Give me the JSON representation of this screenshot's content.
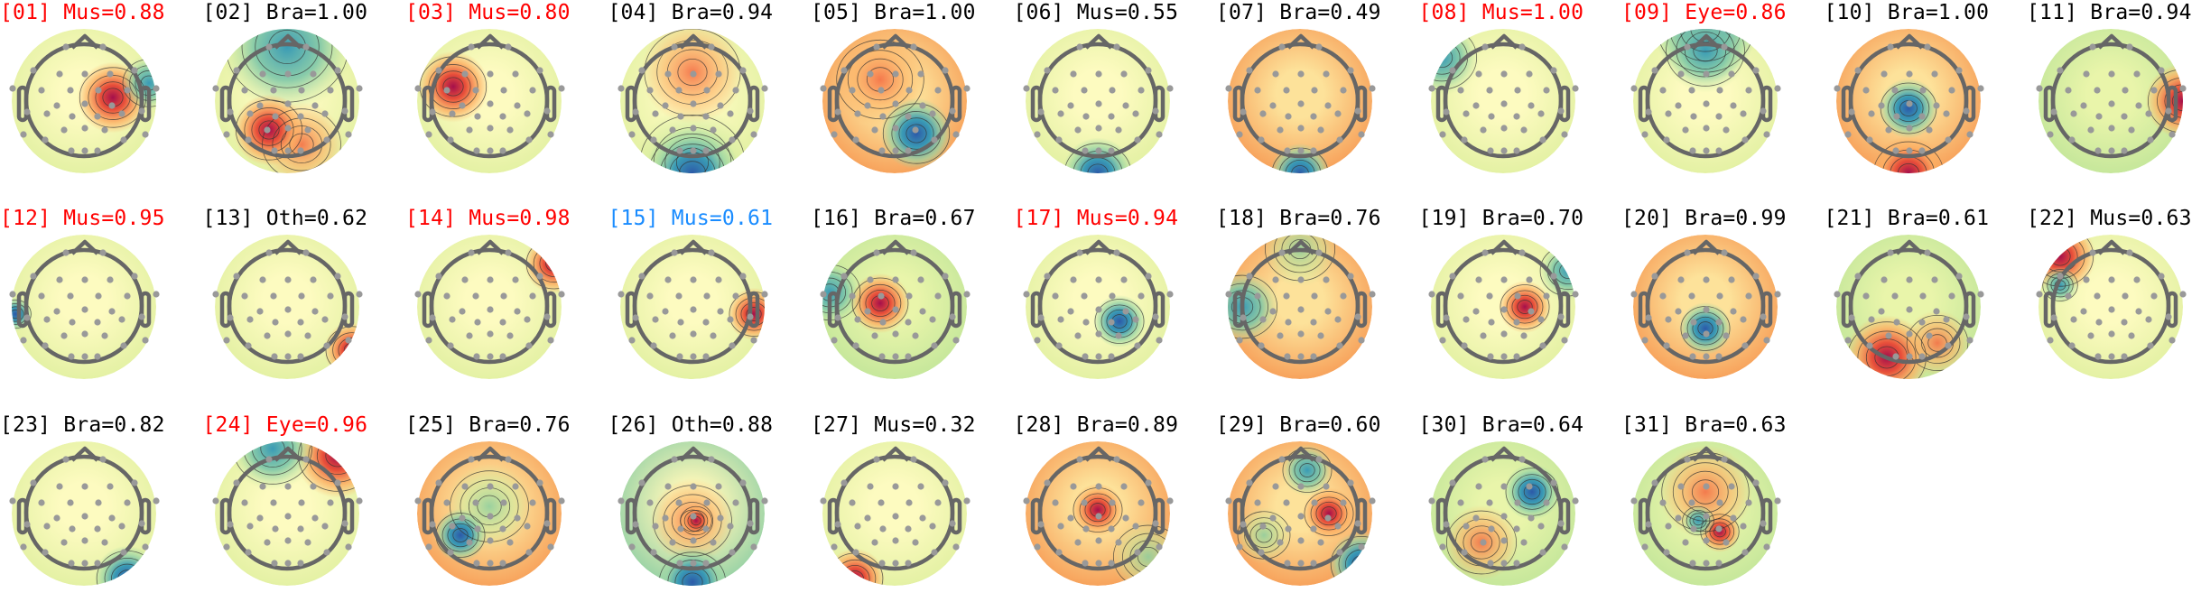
{
  "chart_data": {
    "type": "topomap-grid",
    "colormap": "Spectral_r",
    "label_colors": {
      "flagged": "#ff0000",
      "uncertain": "#1a8cff",
      "normal": "#000000"
    },
    "panels": [
      {
        "title": "[01] Mus=0.88",
        "label": "Mus",
        "score": 0.88,
        "color": "#ff0000"
      },
      {
        "title": "[02] Bra=1.00",
        "label": "Bra",
        "score": 1.0,
        "color": "#000000"
      },
      {
        "title": "[03] Mus=0.80",
        "label": "Mus",
        "score": 0.8,
        "color": "#ff0000"
      },
      {
        "title": "[04] Bra=0.94",
        "label": "Bra",
        "score": 0.94,
        "color": "#000000"
      },
      {
        "title": "[05] Bra=1.00",
        "label": "Bra",
        "score": 1.0,
        "color": "#000000"
      },
      {
        "title": "[06] Mus=0.55",
        "label": "Mus",
        "score": 0.55,
        "color": "#000000"
      },
      {
        "title": "[07] Bra=0.49",
        "label": "Bra",
        "score": 0.49,
        "color": "#000000"
      },
      {
        "title": "[08] Mus=1.00",
        "label": "Mus",
        "score": 1.0,
        "color": "#ff0000"
      },
      {
        "title": "[09] Eye=0.86",
        "label": "Eye",
        "score": 0.86,
        "color": "#ff0000"
      },
      {
        "title": "[10] Bra=1.00",
        "label": "Bra",
        "score": 1.0,
        "color": "#000000"
      },
      {
        "title": "[11] Bra=0.94",
        "label": "Bra",
        "score": 0.94,
        "color": "#000000"
      },
      {
        "title": "[12] Mus=0.95",
        "label": "Mus",
        "score": 0.95,
        "color": "#ff0000"
      },
      {
        "title": "[13] Oth=0.62",
        "label": "Oth",
        "score": 0.62,
        "color": "#000000"
      },
      {
        "title": "[14] Mus=0.98",
        "label": "Mus",
        "score": 0.98,
        "color": "#ff0000"
      },
      {
        "title": "[15] Mus=0.61",
        "label": "Mus",
        "score": 0.61,
        "color": "#1a8cff"
      },
      {
        "title": "[16] Bra=0.67",
        "label": "Bra",
        "score": 0.67,
        "color": "#000000"
      },
      {
        "title": "[17] Mus=0.94",
        "label": "Mus",
        "score": 0.94,
        "color": "#ff0000"
      },
      {
        "title": "[18] Bra=0.76",
        "label": "Bra",
        "score": 0.76,
        "color": "#000000"
      },
      {
        "title": "[19] Bra=0.70",
        "label": "Bra",
        "score": 0.7,
        "color": "#000000"
      },
      {
        "title": "[20] Bra=0.99",
        "label": "Bra",
        "score": 0.99,
        "color": "#000000"
      },
      {
        "title": "[21] Bra=0.61",
        "label": "Bra",
        "score": 0.61,
        "color": "#000000"
      },
      {
        "title": "[22] Mus=0.63",
        "label": "Mus",
        "score": 0.63,
        "color": "#000000"
      },
      {
        "title": "[23] Bra=0.82",
        "label": "Bra",
        "score": 0.82,
        "color": "#000000"
      },
      {
        "title": "[24] Eye=0.96",
        "label": "Eye",
        "score": 0.96,
        "color": "#ff0000"
      },
      {
        "title": "[25] Bra=0.76",
        "label": "Bra",
        "score": 0.76,
        "color": "#000000"
      },
      {
        "title": "[26] Oth=0.88",
        "label": "Oth",
        "score": 0.88,
        "color": "#000000"
      },
      {
        "title": "[27] Mus=0.32",
        "label": "Mus",
        "score": 0.32,
        "color": "#000000"
      },
      {
        "title": "[28] Bra=0.89",
        "label": "Bra",
        "score": 0.89,
        "color": "#000000"
      },
      {
        "title": "[29] Bra=0.60",
        "label": "Bra",
        "score": 0.6,
        "color": "#000000"
      },
      {
        "title": "[30] Bra=0.64",
        "label": "Bra",
        "score": 0.64,
        "color": "#000000"
      },
      {
        "title": "[31] Bra=0.63",
        "label": "Bra",
        "score": 0.63,
        "color": "#000000"
      }
    ]
  }
}
